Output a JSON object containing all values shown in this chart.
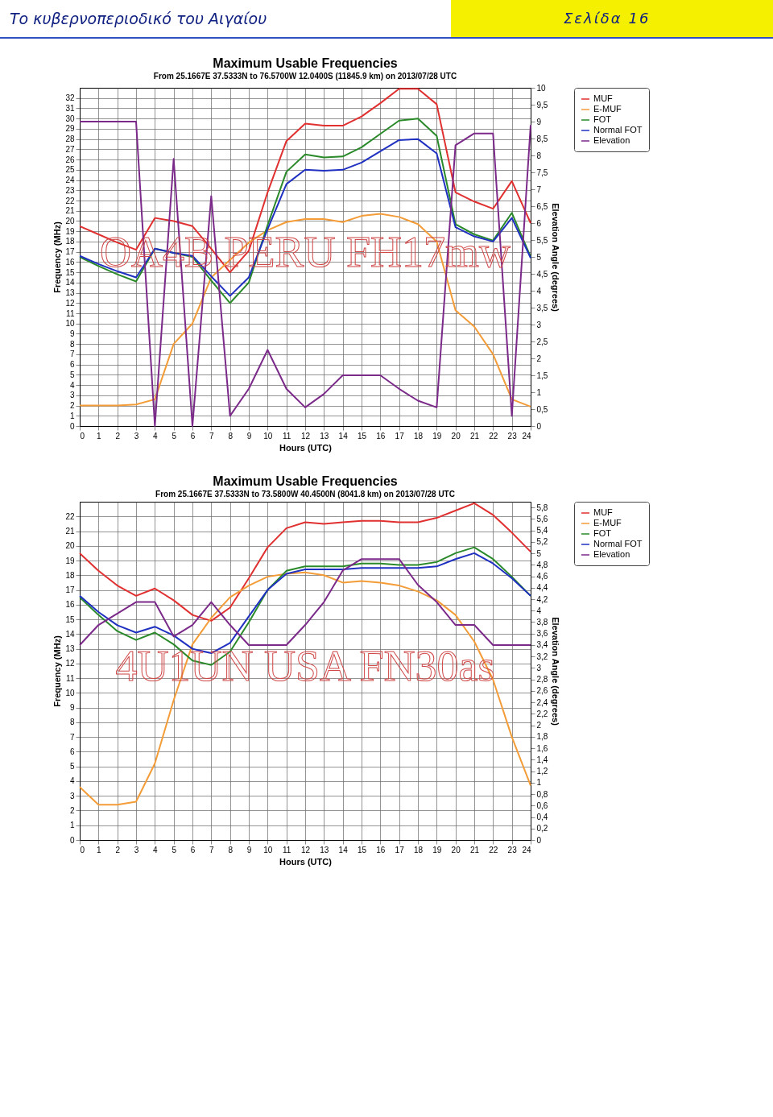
{
  "chart_data": [
    {
      "type": "line",
      "title": "Maximum Usable Frequencies",
      "subtitle": "From  25.1667E 37.5333N to  76.5700W 12.0400S (11845.9 km) on 2013/07/28 UTC",
      "xlabel": "Hours (UTC)",
      "ylabel": "Frequency (MHz)",
      "y2label": "Elevation Angle (degrees)",
      "annotations": [
        "OA4B PERU FH17mw",
        "Το κυβερνοπεριοδικό του Αιγαίου",
        "Σελίδα 16"
      ],
      "x": [
        0,
        1,
        2,
        3,
        4,
        5,
        6,
        7,
        8,
        9,
        10,
        11,
        12,
        13,
        14,
        15,
        16,
        17,
        18,
        19,
        20,
        21,
        22,
        23,
        24
      ],
      "series": [
        {
          "name": "MUF",
          "color": "#e03030",
          "values": [
            19.5,
            18.7,
            17.9,
            17.2,
            20.3,
            20.0,
            19.5,
            17.3,
            15.0,
            17.1,
            22.8,
            27.8,
            29.5,
            29.3,
            29.3,
            30.2,
            31.5,
            32.9,
            32.9,
            31.4,
            22.8,
            21.9,
            21.2,
            23.9,
            19.8
          ]
        },
        {
          "name": "E-MUF",
          "color": "#f39c38",
          "values": [
            2.0,
            2.0,
            2.0,
            2.1,
            2.6,
            8.0,
            10.0,
            14.5,
            16.2,
            17.9,
            19.1,
            19.9,
            20.2,
            20.2,
            19.9,
            20.5,
            20.7,
            20.4,
            19.7,
            18.0,
            11.3,
            9.7,
            7.0,
            2.6,
            1.9
          ]
        },
        {
          "name": "FOT",
          "color": "#2a8a2a",
          "values": [
            16.5,
            15.6,
            14.8,
            14.1,
            17.3,
            16.9,
            16.5,
            14.2,
            12.0,
            14.0,
            19.6,
            24.8,
            26.5,
            26.2,
            26.3,
            27.2,
            28.5,
            29.8,
            30.0,
            28.3,
            19.7,
            18.7,
            18.1,
            20.8,
            16.5
          ]
        },
        {
          "name": "Normal FOT",
          "color": "#2030c0",
          "values": [
            16.6,
            15.8,
            15.1,
            14.5,
            17.3,
            16.9,
            16.6,
            14.6,
            12.7,
            14.5,
            19.2,
            23.6,
            25.0,
            24.9,
            25.0,
            25.7,
            26.8,
            27.9,
            28.0,
            26.6,
            19.4,
            18.5,
            18.0,
            20.3,
            16.4
          ]
        },
        {
          "name": "Elevation",
          "color": "#7b2a8a",
          "axis": "y2",
          "values": [
            9.0,
            9.0,
            9.0,
            9.0,
            0,
            7.9,
            0,
            6.8,
            0.3,
            1.1,
            2.25,
            1.1,
            0.55,
            0.95,
            1.5,
            1.5,
            1.5,
            1.1,
            0.75,
            0.55,
            8.3,
            8.65,
            8.65,
            0.3,
            8.9
          ]
        }
      ],
      "xlim": [
        0,
        24
      ],
      "xticks": [
        0,
        1,
        2,
        3,
        4,
        5,
        6,
        7,
        8,
        9,
        10,
        11,
        12,
        13,
        14,
        15,
        16,
        17,
        18,
        19,
        20,
        21,
        22,
        23,
        24
      ],
      "ylim": [
        0,
        33
      ],
      "yticks": [
        0,
        1,
        2,
        3,
        4,
        5,
        6,
        7,
        8,
        9,
        10,
        11,
        12,
        13,
        14,
        15,
        16,
        17,
        18,
        19,
        20,
        21,
        22,
        23,
        24,
        25,
        26,
        27,
        28,
        29,
        30,
        31,
        32
      ],
      "y2lim": [
        0,
        10
      ],
      "y2ticks": [
        0,
        {
          "value": 0.5,
          "label": "0,5"
        },
        1,
        {
          "value": 1.5,
          "label": "1,5"
        },
        2,
        {
          "value": 2.5,
          "label": "2,5"
        },
        3,
        {
          "value": 3.5,
          "label": "3,5"
        },
        4,
        {
          "value": 4.5,
          "label": "4,5"
        },
        5,
        {
          "value": 5.5,
          "label": "5,5"
        },
        6,
        {
          "value": 6.5,
          "label": "6,5"
        },
        7,
        {
          "value": 7.5,
          "label": "7,5"
        },
        8,
        {
          "value": 8.5,
          "label": "8,5"
        },
        9,
        {
          "value": 9.5,
          "label": "9,5"
        },
        10
      ],
      "grid": true,
      "legend": "top right"
    },
    {
      "type": "line",
      "title": "Maximum Usable Frequencies",
      "subtitle": "From  25.1667E 37.5333N to  73.5800W 40.4500N (8041.8 km) on 2013/07/28 UTC",
      "xlabel": "Hours (UTC)",
      "ylabel": "Frequency (MHz)",
      "y2label": "Elevation Angle (degrees)",
      "annotations": [
        "4U1UN USA FN30as"
      ],
      "x": [
        0,
        1,
        2,
        3,
        4,
        5,
        6,
        7,
        8,
        9,
        10,
        11,
        12,
        13,
        14,
        15,
        16,
        17,
        18,
        19,
        20,
        21,
        22,
        23,
        24
      ],
      "series": [
        {
          "name": "MUF",
          "color": "#e03030",
          "values": [
            19.5,
            18.3,
            17.3,
            16.6,
            17.1,
            16.3,
            15.3,
            14.9,
            15.8,
            17.8,
            19.9,
            21.2,
            21.6,
            21.5,
            21.6,
            21.7,
            21.7,
            21.6,
            21.6,
            21.9,
            22.4,
            22.9,
            22.1,
            20.9,
            19.6
          ]
        },
        {
          "name": "E-MUF",
          "color": "#f39c38",
          "values": [
            3.6,
            2.4,
            2.4,
            2.6,
            5.2,
            9.5,
            13.3,
            15.1,
            16.5,
            17.3,
            17.9,
            18.1,
            18.2,
            18.0,
            17.5,
            17.6,
            17.5,
            17.3,
            16.9,
            16.3,
            15.3,
            13.5,
            10.9,
            7.0,
            3.7
          ]
        },
        {
          "name": "FOT",
          "color": "#2a8a2a",
          "values": [
            16.5,
            15.3,
            14.2,
            13.6,
            14.1,
            13.3,
            12.2,
            11.9,
            12.8,
            14.8,
            17.0,
            18.3,
            18.6,
            18.6,
            18.6,
            18.8,
            18.8,
            18.7,
            18.7,
            18.9,
            19.5,
            19.9,
            19.1,
            17.9,
            16.6
          ]
        },
        {
          "name": "Normal FOT",
          "color": "#2030c0",
          "values": [
            16.6,
            15.5,
            14.6,
            14.1,
            14.5,
            13.9,
            13.0,
            12.7,
            13.4,
            15.2,
            17.0,
            18.1,
            18.4,
            18.4,
            18.4,
            18.5,
            18.5,
            18.5,
            18.5,
            18.6,
            19.1,
            19.5,
            18.8,
            17.8,
            16.6
          ]
        },
        {
          "name": "Elevation",
          "color": "#7b2a8a",
          "axis": "y2",
          "values": [
            3.4,
            3.75,
            3.95,
            4.15,
            4.15,
            3.55,
            3.75,
            4.15,
            3.75,
            3.4,
            3.4,
            3.4,
            3.75,
            4.15,
            4.7,
            4.9,
            4.9,
            4.9,
            4.45,
            4.15,
            3.75,
            3.75,
            3.4,
            3.4,
            3.4
          ]
        }
      ],
      "xlim": [
        0,
        24
      ],
      "xticks": [
        0,
        1,
        2,
        3,
        4,
        5,
        6,
        7,
        8,
        9,
        10,
        11,
        12,
        13,
        14,
        15,
        16,
        17,
        18,
        19,
        20,
        21,
        22,
        23,
        24
      ],
      "ylim": [
        0,
        23
      ],
      "yticks": [
        0,
        1,
        2,
        3,
        4,
        5,
        6,
        7,
        8,
        9,
        10,
        11,
        12,
        13,
        14,
        15,
        16,
        17,
        18,
        19,
        20,
        21,
        22
      ],
      "y2lim": [
        0,
        5.9
      ],
      "y2ticks": [
        0,
        {
          "value": 0.2,
          "label": "0,2"
        },
        {
          "value": 0.4,
          "label": "0,4"
        },
        {
          "value": 0.6,
          "label": "0,6"
        },
        {
          "value": 0.8,
          "label": "0,8"
        },
        1,
        {
          "value": 1.2,
          "label": "1,2"
        },
        {
          "value": 1.4,
          "label": "1,4"
        },
        {
          "value": 1.6,
          "label": "1,6"
        },
        {
          "value": 1.8,
          "label": "1,8"
        },
        2,
        {
          "value": 2.2,
          "label": "2,2"
        },
        {
          "value": 2.4,
          "label": "2,4"
        },
        {
          "value": 2.6,
          "label": "2,6"
        },
        {
          "value": 2.8,
          "label": "2,8"
        },
        3,
        {
          "value": 3.2,
          "label": "3,2"
        },
        {
          "value": 3.4,
          "label": "3,4"
        },
        {
          "value": 3.6,
          "label": "3,6"
        },
        {
          "value": 3.8,
          "label": "3,8"
        },
        4,
        {
          "value": 4.2,
          "label": "4,2"
        },
        {
          "value": 4.4,
          "label": "4,4"
        },
        {
          "value": 4.6,
          "label": "4,6"
        },
        {
          "value": 4.8,
          "label": "4,8"
        },
        5,
        {
          "value": 5.2,
          "label": "5,2"
        },
        {
          "value": 5.4,
          "label": "5,4"
        },
        {
          "value": 5.6,
          "label": "5,6"
        },
        {
          "value": 5.8,
          "label": "5,8"
        }
      ],
      "grid": true,
      "legend": "top right"
    }
  ]
}
